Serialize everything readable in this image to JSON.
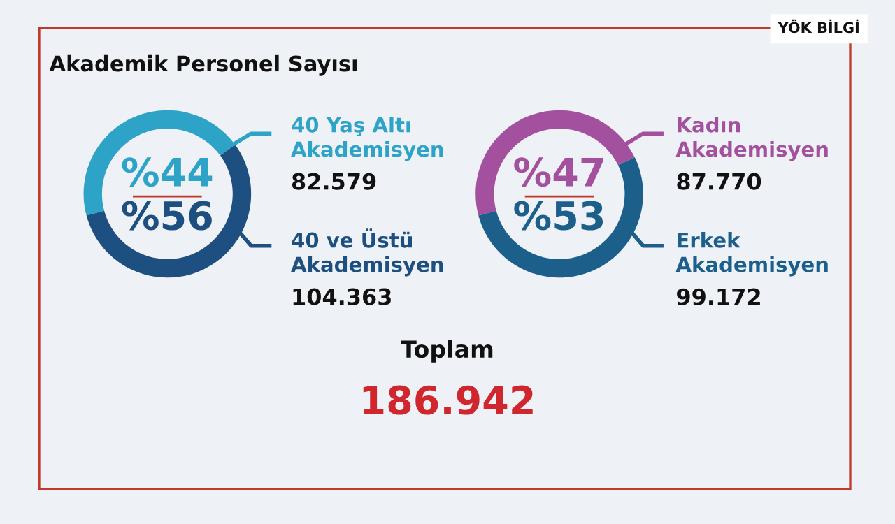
{
  "chart_data": [
    {
      "type": "donut",
      "title": "Akademik Personel Sayısı",
      "categories": [
        "40 Yaş Altı Akademisyen",
        "40 ve Üstü Akademisyen"
      ],
      "values": [
        82579,
        104363
      ],
      "value_labels": [
        "82.579",
        "104.363"
      ],
      "colors": [
        "#2ea3c8",
        "#1d4f80"
      ],
      "annotations": [
        "%44",
        "%56",
        "YÖK BİLGİ"
      ]
    },
    {
      "type": "donut",
      "categories": [
        "Kadın Akademisyen",
        "Erkek Akademisyen"
      ],
      "values": [
        87770,
        99172
      ],
      "value_labels": [
        "87.770",
        "99.172"
      ],
      "colors": [
        "#a3509f",
        "#1c5f8a"
      ],
      "annotations": [
        "%47",
        "%53",
        "Toplam",
        "186.942"
      ]
    }
  ]
}
